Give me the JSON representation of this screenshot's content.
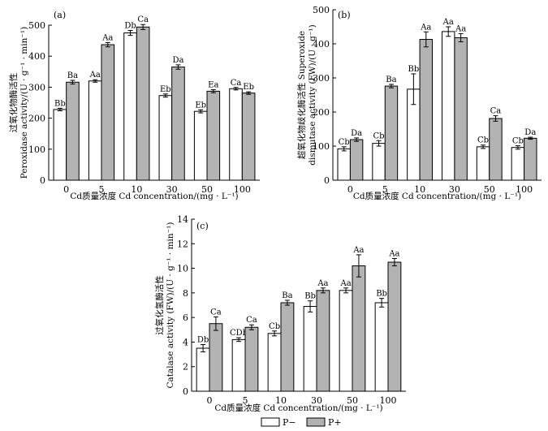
{
  "legend": [
    {
      "name": "P−",
      "color": "#ffffff"
    },
    {
      "name": "P+",
      "color": "#b3b3b3"
    }
  ],
  "chart_data": [
    {
      "type": "bar",
      "panel": "(a)",
      "categories": [
        "0",
        "5",
        "10",
        "30",
        "50",
        "100"
      ],
      "xlabel": "Cd质量浓度 Cd concentration/(mg · L⁻¹)",
      "ylabel_lines": [
        "过氧化物酶活性",
        "Peroxidase activity/(U · g⁻¹ · min⁻¹)"
      ],
      "ylim": [
        0,
        500
      ],
      "yticks": [
        0,
        100,
        200,
        300,
        400,
        500
      ],
      "series": [
        {
          "name": "P−",
          "color": "#ffffff",
          "values": [
            228,
            320,
            475,
            273,
            222,
            295
          ],
          "errors": [
            4,
            4,
            8,
            5,
            5,
            4
          ],
          "labels": [
            "Bb",
            "Aa",
            "Db",
            "Eb",
            "Eb",
            "Ca"
          ]
        },
        {
          "name": "P+",
          "color": "#b3b3b3",
          "values": [
            316,
            437,
            494,
            365,
            287,
            281
          ],
          "errors": [
            6,
            7,
            8,
            7,
            5,
            4
          ],
          "labels": [
            "Ba",
            "Aa",
            "Ca",
            "Da",
            "Ea",
            "Eb"
          ]
        }
      ]
    },
    {
      "type": "bar",
      "panel": "(b)",
      "categories": [
        "0",
        "5",
        "10",
        "30",
        "50",
        "100"
      ],
      "xlabel": "Cd质量浓度 Cd concentration/(mg · L⁻¹)",
      "ylabel_lines": [
        "超氧化物歧化酶活性 Superoxide",
        "dismutase activity (FW)/(U · g⁻¹)"
      ],
      "ylim": [
        0,
        500
      ],
      "yticks": [
        0,
        100,
        200,
        300,
        400,
        500
      ],
      "series": [
        {
          "name": "P−",
          "color": "#ffffff",
          "values": [
            92,
            108,
            267,
            436,
            98,
            96
          ],
          "errors": [
            6,
            8,
            45,
            14,
            5,
            5
          ],
          "labels": [
            "Cb",
            "Cb",
            "Bb",
            "Aa",
            "Cb",
            "Cb"
          ]
        },
        {
          "name": "P+",
          "color": "#b3b3b3",
          "values": [
            119,
            276,
            413,
            418,
            181,
            123
          ],
          "errors": [
            5,
            5,
            22,
            12,
            8,
            3
          ],
          "labels": [
            "Da",
            "Ba",
            "Aa",
            "Aa",
            "Ca",
            "Da"
          ]
        }
      ]
    },
    {
      "type": "bar",
      "panel": "(c)",
      "categories": [
        "0",
        "5",
        "10",
        "30",
        "50",
        "100"
      ],
      "xlabel": "Cd质量浓度 Cd concentration/(mg · L⁻¹)",
      "ylabel_lines": [
        "过氧化氢酶活性",
        "Catalase activity (FW)/(U · g⁻¹ · min⁻¹)"
      ],
      "ylim": [
        0,
        14
      ],
      "yticks": [
        0,
        2,
        4,
        6,
        8,
        10,
        12,
        14
      ],
      "series": [
        {
          "name": "P−",
          "color": "#ffffff",
          "values": [
            3.5,
            4.2,
            4.7,
            6.9,
            8.2,
            7.2
          ],
          "errors": [
            0.3,
            0.15,
            0.2,
            0.45,
            0.2,
            0.35
          ],
          "labels": [
            "Db",
            "CDb",
            "Cb",
            "Bb",
            "Aa",
            "Bb"
          ]
        },
        {
          "name": "P+",
          "color": "#b3b3b3",
          "values": [
            5.5,
            5.2,
            7.2,
            8.2,
            10.2,
            10.5
          ],
          "errors": [
            0.55,
            0.2,
            0.2,
            0.2,
            0.9,
            0.3
          ],
          "labels": [
            "Ca",
            "Ca",
            "Ba",
            "Aa",
            "Aa",
            "Aa"
          ]
        }
      ]
    }
  ]
}
